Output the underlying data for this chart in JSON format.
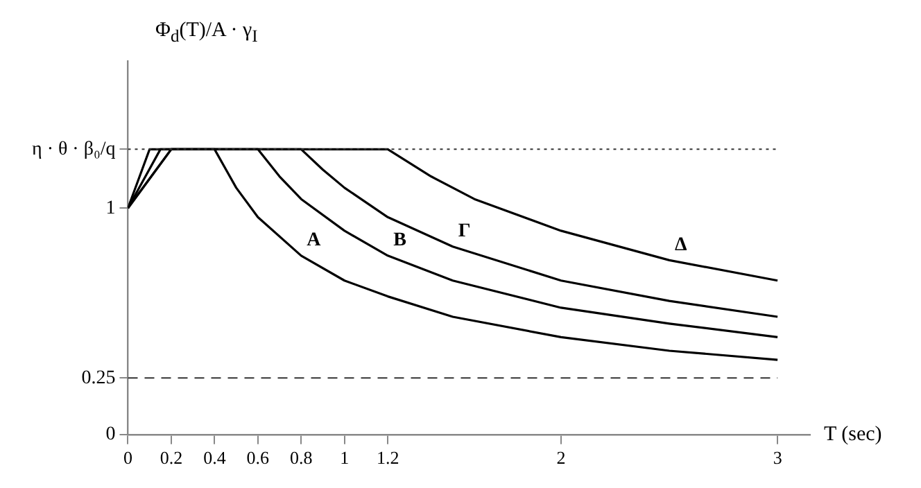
{
  "chart_data": {
    "type": "line",
    "xlabel": "T (sec)",
    "ylabel": "Φ$_{d}$(T)/A · γ$_{I}$",
    "xlim": [
      0,
      3.15
    ],
    "xticks": [
      0,
      0.2,
      0.4,
      0.6,
      0.8,
      1,
      1.2,
      2,
      3
    ],
    "ylim": [
      0,
      1.65
    ],
    "yticks": [
      0,
      0.25,
      1,
      {
        "value": 1.26,
        "label": "η · θ · β₀/q"
      }
    ],
    "grid": false,
    "legend": false,
    "marker": "none",
    "line_style": "solid",
    "ref_lines": [
      {
        "axis": "y",
        "value": 0.25,
        "line_style": "dashed",
        "color": "#333333"
      },
      {
        "axis": "y",
        "value": 1.26,
        "line_style": "dotted",
        "color": "#333333"
      }
    ],
    "series": [
      {
        "name": "A",
        "color": "#000000",
        "x": [
          0,
          0.1,
          0.4,
          0.5,
          0.6,
          0.8,
          1.0,
          1.2,
          1.5,
          2.0,
          2.5,
          3.0
        ],
        "values": [
          1,
          1.26,
          1.26,
          1.09,
          0.96,
          0.79,
          0.68,
          0.61,
          0.52,
          0.43,
          0.37,
          0.33
        ]
      },
      {
        "name": "Β",
        "color": "#000000",
        "x": [
          0,
          0.15,
          0.6,
          0.7,
          0.8,
          1.0,
          1.2,
          1.5,
          2.0,
          2.5,
          3.0
        ],
        "values": [
          1,
          1.26,
          1.26,
          1.14,
          1.04,
          0.9,
          0.79,
          0.68,
          0.56,
          0.49,
          0.43
        ]
      },
      {
        "name": "Γ",
        "color": "#000000",
        "x": [
          0,
          0.2,
          0.8,
          0.9,
          1.0,
          1.2,
          1.5,
          2.0,
          2.5,
          3.0
        ],
        "values": [
          1,
          1.26,
          1.26,
          1.17,
          1.09,
          0.96,
          0.83,
          0.68,
          0.59,
          0.52
        ]
      },
      {
        "name": "Δ",
        "color": "#000000",
        "x": [
          0,
          0.2,
          1.2,
          1.4,
          1.6,
          2.0,
          2.5,
          3.0
        ],
        "values": [
          1,
          1.26,
          1.26,
          1.14,
          1.04,
          0.9,
          0.77,
          0.68
        ]
      }
    ]
  }
}
